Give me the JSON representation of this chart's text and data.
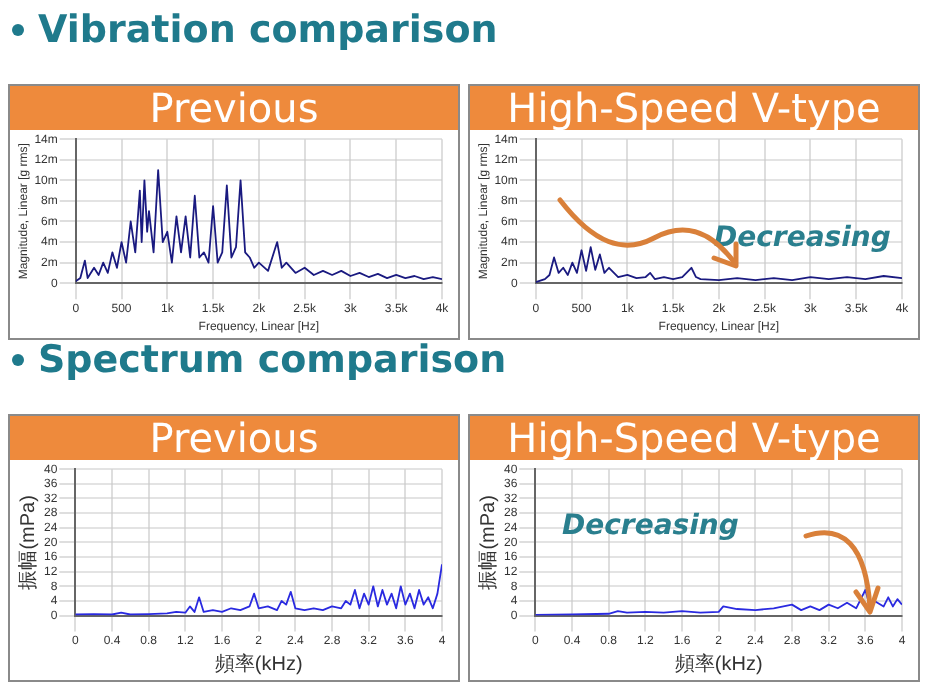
{
  "chart_data": [
    {
      "type": "line",
      "title": "Previous",
      "annotations": [
        "Vibration comparison"
      ],
      "xlabel": "Frequency, Linear [Hz]",
      "ylabel": "Magnitude, Linear [g rms]",
      "xlim": [
        0,
        4000
      ],
      "xticks": [
        0,
        500,
        {
          "value": 1000,
          "label": "1k"
        },
        {
          "value": 1500,
          "label": "1.5k"
        },
        {
          "value": 2000,
          "label": "2k"
        },
        {
          "value": 2500,
          "label": "2.5k"
        },
        {
          "value": 3000,
          "label": "3k"
        },
        {
          "value": 3500,
          "label": "3.5k"
        },
        {
          "value": 4000,
          "label": "4k"
        }
      ],
      "ylim": [
        0,
        14
      ],
      "yticks": [
        0,
        {
          "value": 2,
          "label": "2m"
        },
        {
          "value": 4,
          "label": "4m"
        },
        {
          "value": 6,
          "label": "6m"
        },
        {
          "value": 8,
          "label": "8m"
        },
        {
          "value": 10,
          "label": "10m"
        },
        {
          "value": 12,
          "label": "12m"
        },
        {
          "value": 14,
          "label": "14m"
        }
      ],
      "grid": true,
      "x": [
        0,
        50,
        100,
        130,
        200,
        250,
        300,
        350,
        400,
        450,
        500,
        550,
        600,
        650,
        700,
        720,
        750,
        780,
        800,
        850,
        900,
        950,
        1000,
        1050,
        1100,
        1150,
        1200,
        1250,
        1300,
        1350,
        1400,
        1450,
        1500,
        1550,
        1600,
        1650,
        1700,
        1750,
        1800,
        1850,
        1900,
        1950,
        2000,
        2100,
        2200,
        2250,
        2300,
        2400,
        2500,
        2600,
        2700,
        2800,
        2900,
        3000,
        3100,
        3200,
        3300,
        3400,
        3500,
        3600,
        3700,
        3800,
        3900,
        4000
      ],
      "series": [
        {
          "color": "#1a1a80",
          "values": [
            0.2,
            0.5,
            2.2,
            0.5,
            1.5,
            0.8,
            2,
            1,
            3,
            1.5,
            4,
            2,
            6,
            3,
            9,
            4,
            10,
            5,
            7,
            3,
            11,
            4,
            5,
            2,
            6.5,
            3,
            6.5,
            2.5,
            8.5,
            2.5,
            3,
            2,
            7.5,
            2,
            3,
            9.5,
            2.5,
            3.5,
            10,
            3,
            2.5,
            1.5,
            2,
            1.2,
            4,
            1.5,
            2,
            1,
            1.5,
            0.8,
            1.2,
            0.8,
            1.2,
            0.7,
            1,
            0.6,
            0.9,
            0.5,
            0.8,
            0.5,
            0.7,
            0.4,
            0.6,
            0.4
          ]
        }
      ]
    },
    {
      "type": "line",
      "title": "High-Speed V-type",
      "annotations": [
        "Decreasing"
      ],
      "xlabel": "Frequency, Linear [Hz]",
      "ylabel": "Magnitude, Linear [g rms]",
      "xlim": [
        0,
        4000
      ],
      "xticks": [
        0,
        500,
        {
          "value": 1000,
          "label": "1k"
        },
        {
          "value": 1500,
          "label": "1.5k"
        },
        {
          "value": 2000,
          "label": "2k"
        },
        {
          "value": 2500,
          "label": "2.5k"
        },
        {
          "value": 3000,
          "label": "3k"
        },
        {
          "value": 3500,
          "label": "3.5k"
        },
        {
          "value": 4000,
          "label": "4k"
        }
      ],
      "ylim": [
        0,
        14
      ],
      "yticks": [
        0,
        {
          "value": 2,
          "label": "2m"
        },
        {
          "value": 4,
          "label": "4m"
        },
        {
          "value": 6,
          "label": "6m"
        },
        {
          "value": 8,
          "label": "8m"
        },
        {
          "value": 10,
          "label": "10m"
        },
        {
          "value": 12,
          "label": "12m"
        },
        {
          "value": 14,
          "label": "14m"
        }
      ],
      "grid": true,
      "x": [
        0,
        100,
        150,
        200,
        250,
        300,
        350,
        400,
        450,
        500,
        550,
        600,
        650,
        700,
        750,
        800,
        900,
        1000,
        1100,
        1200,
        1250,
        1300,
        1400,
        1500,
        1600,
        1700,
        1750,
        1800,
        2000,
        2200,
        2400,
        2600,
        2800,
        3000,
        3200,
        3400,
        3600,
        3800,
        4000
      ],
      "series": [
        {
          "color": "#1a1a80",
          "values": [
            0.1,
            0.4,
            0.8,
            2.5,
            1,
            1.5,
            0.8,
            2,
            1,
            3.2,
            1.2,
            3.5,
            1.3,
            2.8,
            1,
            1.5,
            0.6,
            0.8,
            0.5,
            0.6,
            1,
            0.4,
            0.6,
            0.4,
            0.6,
            1.5,
            0.6,
            0.4,
            0.3,
            0.5,
            0.3,
            0.5,
            0.3,
            0.6,
            0.4,
            0.6,
            0.4,
            0.7,
            0.5
          ]
        }
      ]
    },
    {
      "type": "line",
      "title": "Previous",
      "annotations": [
        "Spectrum comparison"
      ],
      "xlabel": "頻率(kHz)",
      "ylabel": "振幅(mPa)",
      "xlim": [
        0,
        4
      ],
      "xticks": [
        0,
        0.4,
        0.8,
        1.2,
        1.6,
        2,
        2.4,
        2.8,
        3.2,
        3.6,
        4
      ],
      "ylim": [
        0,
        40
      ],
      "yticks": [
        0,
        4,
        8,
        12,
        16,
        20,
        24,
        28,
        32,
        36,
        40
      ],
      "grid": true,
      "x": [
        0,
        0.2,
        0.4,
        0.5,
        0.6,
        0.8,
        1,
        1.1,
        1.2,
        1.25,
        1.3,
        1.35,
        1.4,
        1.5,
        1.6,
        1.7,
        1.8,
        1.9,
        1.95,
        2,
        2.1,
        2.2,
        2.25,
        2.3,
        2.35,
        2.4,
        2.5,
        2.6,
        2.7,
        2.8,
        2.9,
        2.95,
        3,
        3.05,
        3.1,
        3.15,
        3.2,
        3.25,
        3.3,
        3.35,
        3.4,
        3.45,
        3.5,
        3.55,
        3.6,
        3.65,
        3.7,
        3.75,
        3.8,
        3.85,
        3.9,
        3.95,
        4
      ],
      "series": [
        {
          "color": "#2a2ae0",
          "values": [
            0.3,
            0.4,
            0.3,
            0.8,
            0.3,
            0.4,
            0.6,
            1,
            0.8,
            2.5,
            1,
            5,
            1,
            1.5,
            1,
            2,
            1.5,
            2.5,
            6,
            2,
            2.5,
            1.5,
            4,
            3,
            6.5,
            2,
            1.5,
            2,
            1.5,
            2.5,
            2,
            4,
            3,
            7,
            2,
            6,
            3,
            8,
            2.5,
            7,
            3,
            6,
            2,
            8,
            3,
            6,
            2,
            7,
            3,
            5,
            2,
            6,
            14
          ]
        }
      ]
    },
    {
      "type": "line",
      "title": "High-Speed V-type",
      "annotations": [
        "Decreasing"
      ],
      "xlabel": "頻率(kHz)",
      "ylabel": "振幅(mPa)",
      "xlim": [
        0,
        4
      ],
      "xticks": [
        0,
        0.4,
        0.8,
        1.2,
        1.6,
        2,
        2.4,
        2.8,
        3.2,
        3.6,
        4
      ],
      "ylim": [
        0,
        40
      ],
      "yticks": [
        0,
        4,
        8,
        12,
        16,
        20,
        24,
        28,
        32,
        36,
        40
      ],
      "grid": true,
      "x": [
        0,
        0.4,
        0.8,
        0.9,
        1,
        1.2,
        1.4,
        1.6,
        1.8,
        2,
        2.05,
        2.2,
        2.4,
        2.6,
        2.8,
        2.9,
        3,
        3.1,
        3.2,
        3.3,
        3.4,
        3.5,
        3.6,
        3.65,
        3.7,
        3.8,
        3.85,
        3.9,
        3.95,
        4
      ],
      "series": [
        {
          "color": "#2a2ae0",
          "values": [
            0.2,
            0.3,
            0.5,
            1.2,
            0.8,
            1,
            0.8,
            1.2,
            0.8,
            1,
            2.5,
            1.8,
            1.5,
            2,
            3,
            1.5,
            2.5,
            1.5,
            3,
            2,
            3.5,
            2,
            7,
            2.5,
            4,
            2.5,
            5,
            2.5,
            4.5,
            3
          ]
        }
      ]
    }
  ]
}
